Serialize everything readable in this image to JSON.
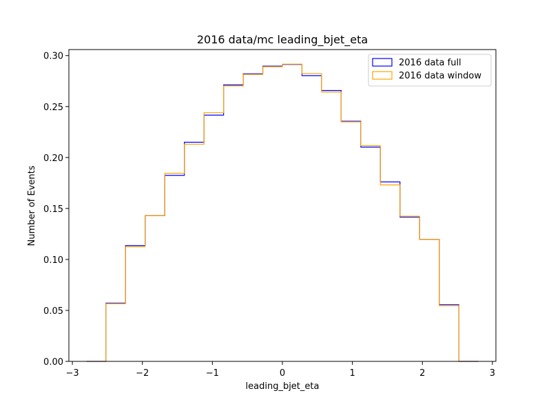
{
  "chart_data": {
    "type": "histogram-step",
    "title": "2016 data/mc leading_bjet_eta",
    "xlabel": "leading_bjet_eta",
    "ylabel": "Number of Events",
    "xlim": [
      -3.05,
      3.05
    ],
    "ylim": [
      0.0,
      0.3059
    ],
    "xticks": [
      -3,
      -2,
      -1,
      0,
      1,
      2,
      3
    ],
    "xtick_labels": [
      "−3",
      "−2",
      "−1",
      "0",
      "1",
      "2",
      "3"
    ],
    "yticks": [
      0.0,
      0.05,
      0.1,
      0.15,
      0.2,
      0.25,
      0.3
    ],
    "ytick_labels": [
      "0.00",
      "0.05",
      "0.10",
      "0.15",
      "0.20",
      "0.25",
      "0.30"
    ],
    "bin_edges": [
      -2.8,
      -2.52,
      -2.24,
      -1.96,
      -1.68,
      -1.4,
      -1.12,
      -0.84,
      -0.56,
      -0.28,
      0.0,
      0.28,
      0.56,
      0.84,
      1.12,
      1.4,
      1.68,
      1.96,
      2.24,
      2.52,
      2.8
    ],
    "legend_position": "top-right",
    "series": [
      {
        "name": "2016 data full",
        "color": "#0000ff",
        "values": [
          0.0,
          0.0572,
          0.1136,
          0.143,
          0.1825,
          0.215,
          0.2416,
          0.2712,
          0.2821,
          0.2896,
          0.2913,
          0.2803,
          0.2657,
          0.2356,
          0.2102,
          0.1761,
          0.1415,
          0.1197,
          0.0556,
          0.0
        ]
      },
      {
        "name": "2016 data window",
        "color": "#ffa500",
        "values": [
          0.0,
          0.0566,
          0.1124,
          0.143,
          0.1845,
          0.213,
          0.244,
          0.2703,
          0.2815,
          0.289,
          0.2916,
          0.2824,
          0.2642,
          0.235,
          0.2116,
          0.1731,
          0.1424,
          0.1197,
          0.0547,
          0.0
        ]
      }
    ]
  }
}
